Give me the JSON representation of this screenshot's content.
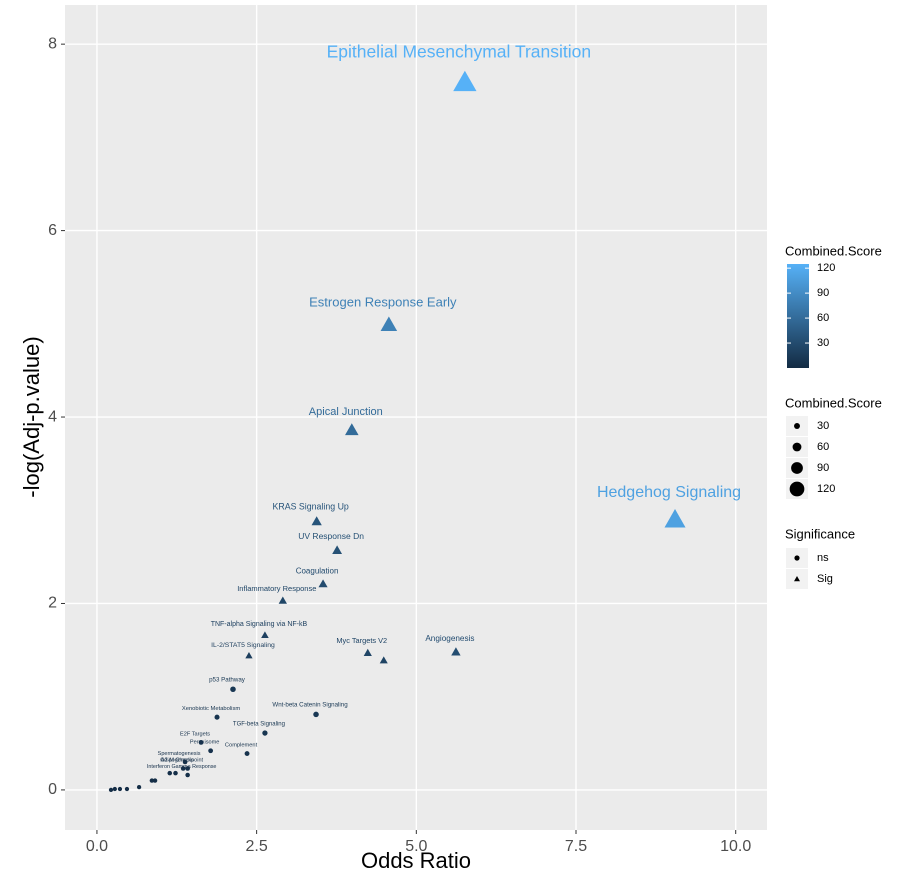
{
  "chart_data": {
    "type": "scatter",
    "x_label": "Odds Ratio",
    "y_label": "-log(Adj-p.value)",
    "xlim": [
      -0.5,
      10.49
    ],
    "ylim": [
      -0.43,
      8.42
    ],
    "xticks": [
      {
        "value": 0,
        "label": "0.0"
      },
      2.5,
      {
        "value": 5,
        "label": "5.0"
      },
      7.5,
      {
        "value": 10,
        "label": "10.0"
      }
    ],
    "yticks": [
      0,
      2,
      4,
      6,
      8
    ],
    "grid": true,
    "shapes": {
      "ns": "circle",
      "Sig": "triangle"
    },
    "points": [
      {
        "label": "Epithelial Mesenchymal Transition",
        "x": 5.76,
        "y": 7.59,
        "score": 125,
        "significance": "Sig"
      },
      {
        "label": "Estrogen Response Early",
        "x": 4.57,
        "y": 4.99,
        "score": 80,
        "significance": "Sig"
      },
      {
        "label": "Apical Junction",
        "x": 3.99,
        "y": 3.86,
        "score": 60,
        "significance": "Sig"
      },
      {
        "label": "Hedgehog Signaling",
        "x": 9.05,
        "y": 2.9,
        "score": 110,
        "significance": "Sig"
      },
      {
        "label": "KRAS Signaling Up",
        "x": 3.44,
        "y": 2.88,
        "score": 38,
        "significance": "Sig"
      },
      {
        "label": "UV Response Dn",
        "x": 3.76,
        "y": 2.57,
        "score": 35,
        "significance": "Sig"
      },
      {
        "label": "Coagulation",
        "x": 3.54,
        "y": 2.21,
        "score": 30,
        "significance": "Sig"
      },
      {
        "label": "Inflammatory Response",
        "x": 2.91,
        "y": 2.03,
        "score": 25,
        "significance": "Sig"
      },
      {
        "label": "TNF-alpha Signaling via NF-kB",
        "x": 2.63,
        "y": 1.66,
        "score": 20,
        "significance": "Sig"
      },
      {
        "label": "IL-2/STAT5 Signaling",
        "x": 2.38,
        "y": 1.44,
        "score": 18,
        "significance": "Sig"
      },
      {
        "label": "Myc Targets V2",
        "x": 4.24,
        "y": 1.47,
        "score": 24,
        "significance": "Sig"
      },
      {
        "label": null,
        "x": 4.49,
        "y": 1.39,
        "score": 23,
        "significance": "Sig"
      },
      {
        "label": "Angiogenesis",
        "x": 5.62,
        "y": 1.48,
        "score": 32,
        "significance": "Sig"
      },
      {
        "label": "p53 Pathway",
        "x": 2.13,
        "y": 1.08,
        "score": 12,
        "significance": "ns"
      },
      {
        "label": "Wnt-beta Catenin Signaling",
        "x": 3.43,
        "y": 0.81,
        "score": 12,
        "significance": "ns"
      },
      {
        "label": "TGF-beta Signaling",
        "x": 2.63,
        "y": 0.61,
        "score": 10,
        "significance": "ns"
      },
      {
        "label": "Xenobiotic Metabolism",
        "x": 1.88,
        "y": 0.78,
        "score": 8,
        "significance": "ns"
      },
      {
        "label": "Complement",
        "x": 2.35,
        "y": 0.39,
        "score": 7,
        "significance": "ns"
      },
      {
        "label": "Peroxisome",
        "x": 1.78,
        "y": 0.42,
        "score": 6,
        "significance": "ns"
      },
      {
        "label": "E2F Targets",
        "x": 1.63,
        "y": 0.51,
        "score": 6,
        "significance": "ns"
      },
      {
        "label": "Spermatogenesis",
        "x": 1.38,
        "y": 0.3,
        "score": 5,
        "significance": "ns"
      },
      {
        "label": "Adipogenesis",
        "x": 1.35,
        "y": 0.23,
        "score": 5,
        "significance": "ns"
      },
      {
        "label": "G2-M Checkpoint",
        "x": 1.42,
        "y": 0.23,
        "score": 5,
        "significance": "ns"
      },
      {
        "label": "Interferon Gamma Response",
        "x": 1.42,
        "y": 0.16,
        "score": 4,
        "significance": "ns"
      },
      {
        "label": null,
        "x": 1.14,
        "y": 0.18,
        "score": 4,
        "significance": "ns"
      },
      {
        "label": null,
        "x": 1.23,
        "y": 0.18,
        "score": 4,
        "significance": "ns"
      },
      {
        "label": null,
        "x": 0.86,
        "y": 0.1,
        "score": 3,
        "significance": "ns"
      },
      {
        "label": null,
        "x": 0.91,
        "y": 0.1,
        "score": 3,
        "significance": "ns"
      },
      {
        "label": null,
        "x": 0.66,
        "y": 0.03,
        "score": 2,
        "significance": "ns"
      },
      {
        "label": null,
        "x": 0.47,
        "y": 0.01,
        "score": 2,
        "significance": "ns"
      },
      {
        "label": null,
        "x": 0.36,
        "y": 0.01,
        "score": 2,
        "significance": "ns"
      },
      {
        "label": null,
        "x": 0.28,
        "y": 0.01,
        "score": 2,
        "significance": "ns"
      },
      {
        "label": null,
        "x": 0.22,
        "y": 0.0,
        "score": 2,
        "significance": "ns"
      }
    ],
    "color_legend": {
      "title": "Combined.Score",
      "low": "#132B43",
      "high": "#56B1F7",
      "limits": [
        0,
        125
      ],
      "ticks": [
        30,
        60,
        90,
        120
      ]
    },
    "size_legend": {
      "title": "Combined.Score",
      "values": [
        30,
        60,
        90,
        120
      ]
    },
    "shape_legend": {
      "title": "Significance",
      "levels": [
        "ns",
        "Sig"
      ]
    }
  }
}
